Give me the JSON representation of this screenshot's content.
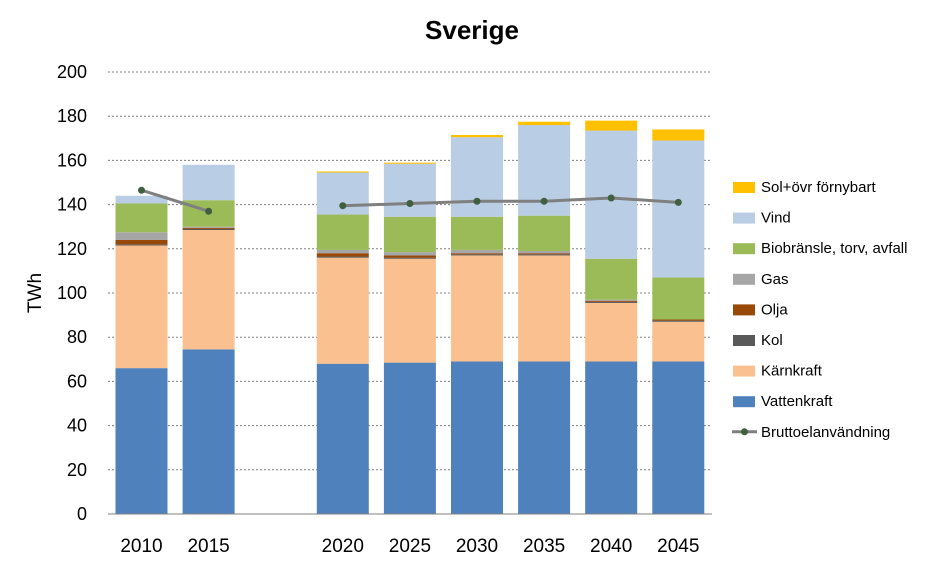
{
  "chart_data": {
    "type": "bar",
    "stacked": true,
    "title": "Sverige",
    "xlabel": "",
    "ylabel": "TWh",
    "ylim": [
      0,
      200
    ],
    "yticks": [
      0,
      20,
      40,
      60,
      80,
      100,
      120,
      140,
      160,
      180,
      200
    ],
    "grid": true,
    "legend_position": "right",
    "categories": [
      "2010",
      "2015",
      "2020",
      "2025",
      "2030",
      "2035",
      "2040",
      "2045"
    ],
    "category_slots": [
      0,
      1,
      3,
      4,
      5,
      6,
      7,
      8
    ],
    "series": [
      {
        "name": "Vattenkraft",
        "color": "#4F81BD",
        "values": [
          66,
          74.5,
          68,
          68.5,
          69,
          69,
          69,
          69
        ]
      },
      {
        "name": "Kärnkraft",
        "color": "#FAC090",
        "values": [
          55.5,
          54,
          48,
          47,
          48,
          48,
          26.5,
          18
        ]
      },
      {
        "name": "Kol",
        "color": "#595959",
        "values": [
          0.5,
          0.5,
          0.5,
          0.5,
          0.5,
          0.5,
          0.5,
          0.5
        ]
      },
      {
        "name": "Olja",
        "color": "#984807",
        "values": [
          2,
          0.5,
          1.5,
          1,
          0.5,
          0.5,
          0.5,
          0.5
        ]
      },
      {
        "name": "Gas",
        "color": "#A6A6A6",
        "values": [
          3.5,
          0.5,
          1.5,
          1.5,
          1.5,
          1,
          0.5,
          0
        ]
      },
      {
        "name": "Biobränsle, torv, avfall",
        "color": "#9BBB59",
        "values": [
          13,
          12,
          16,
          16,
          15,
          16,
          18.5,
          19
        ]
      },
      {
        "name": "Vind",
        "color": "#B9CDE5",
        "values": [
          3.5,
          16,
          19,
          24,
          36,
          41,
          58,
          62
        ]
      },
      {
        "name": "Sol+övr förnybart",
        "color": "#FFC000",
        "values": [
          0,
          0,
          0.5,
          0.5,
          1,
          1.5,
          4.5,
          5
        ]
      }
    ],
    "line_series": {
      "name": "Bruttoelanvändning",
      "color": "#7F7F7F",
      "marker_color": "#3F5F3F",
      "segments": [
        {
          "categories": [
            "2010",
            "2015"
          ],
          "values": [
            146.5,
            137
          ]
        },
        {
          "categories": [
            "2020",
            "2025",
            "2030",
            "2035",
            "2040",
            "2045"
          ],
          "values": [
            139.5,
            140.5,
            141.5,
            141.5,
            143,
            141
          ]
        }
      ]
    },
    "legend_order": [
      "Sol+övr förnybart",
      "Vind",
      "Biobränsle, torv, avfall",
      "Gas",
      "Olja",
      "Kol",
      "Kärnkraft",
      "Vattenkraft",
      "Bruttoelanvändning"
    ]
  }
}
